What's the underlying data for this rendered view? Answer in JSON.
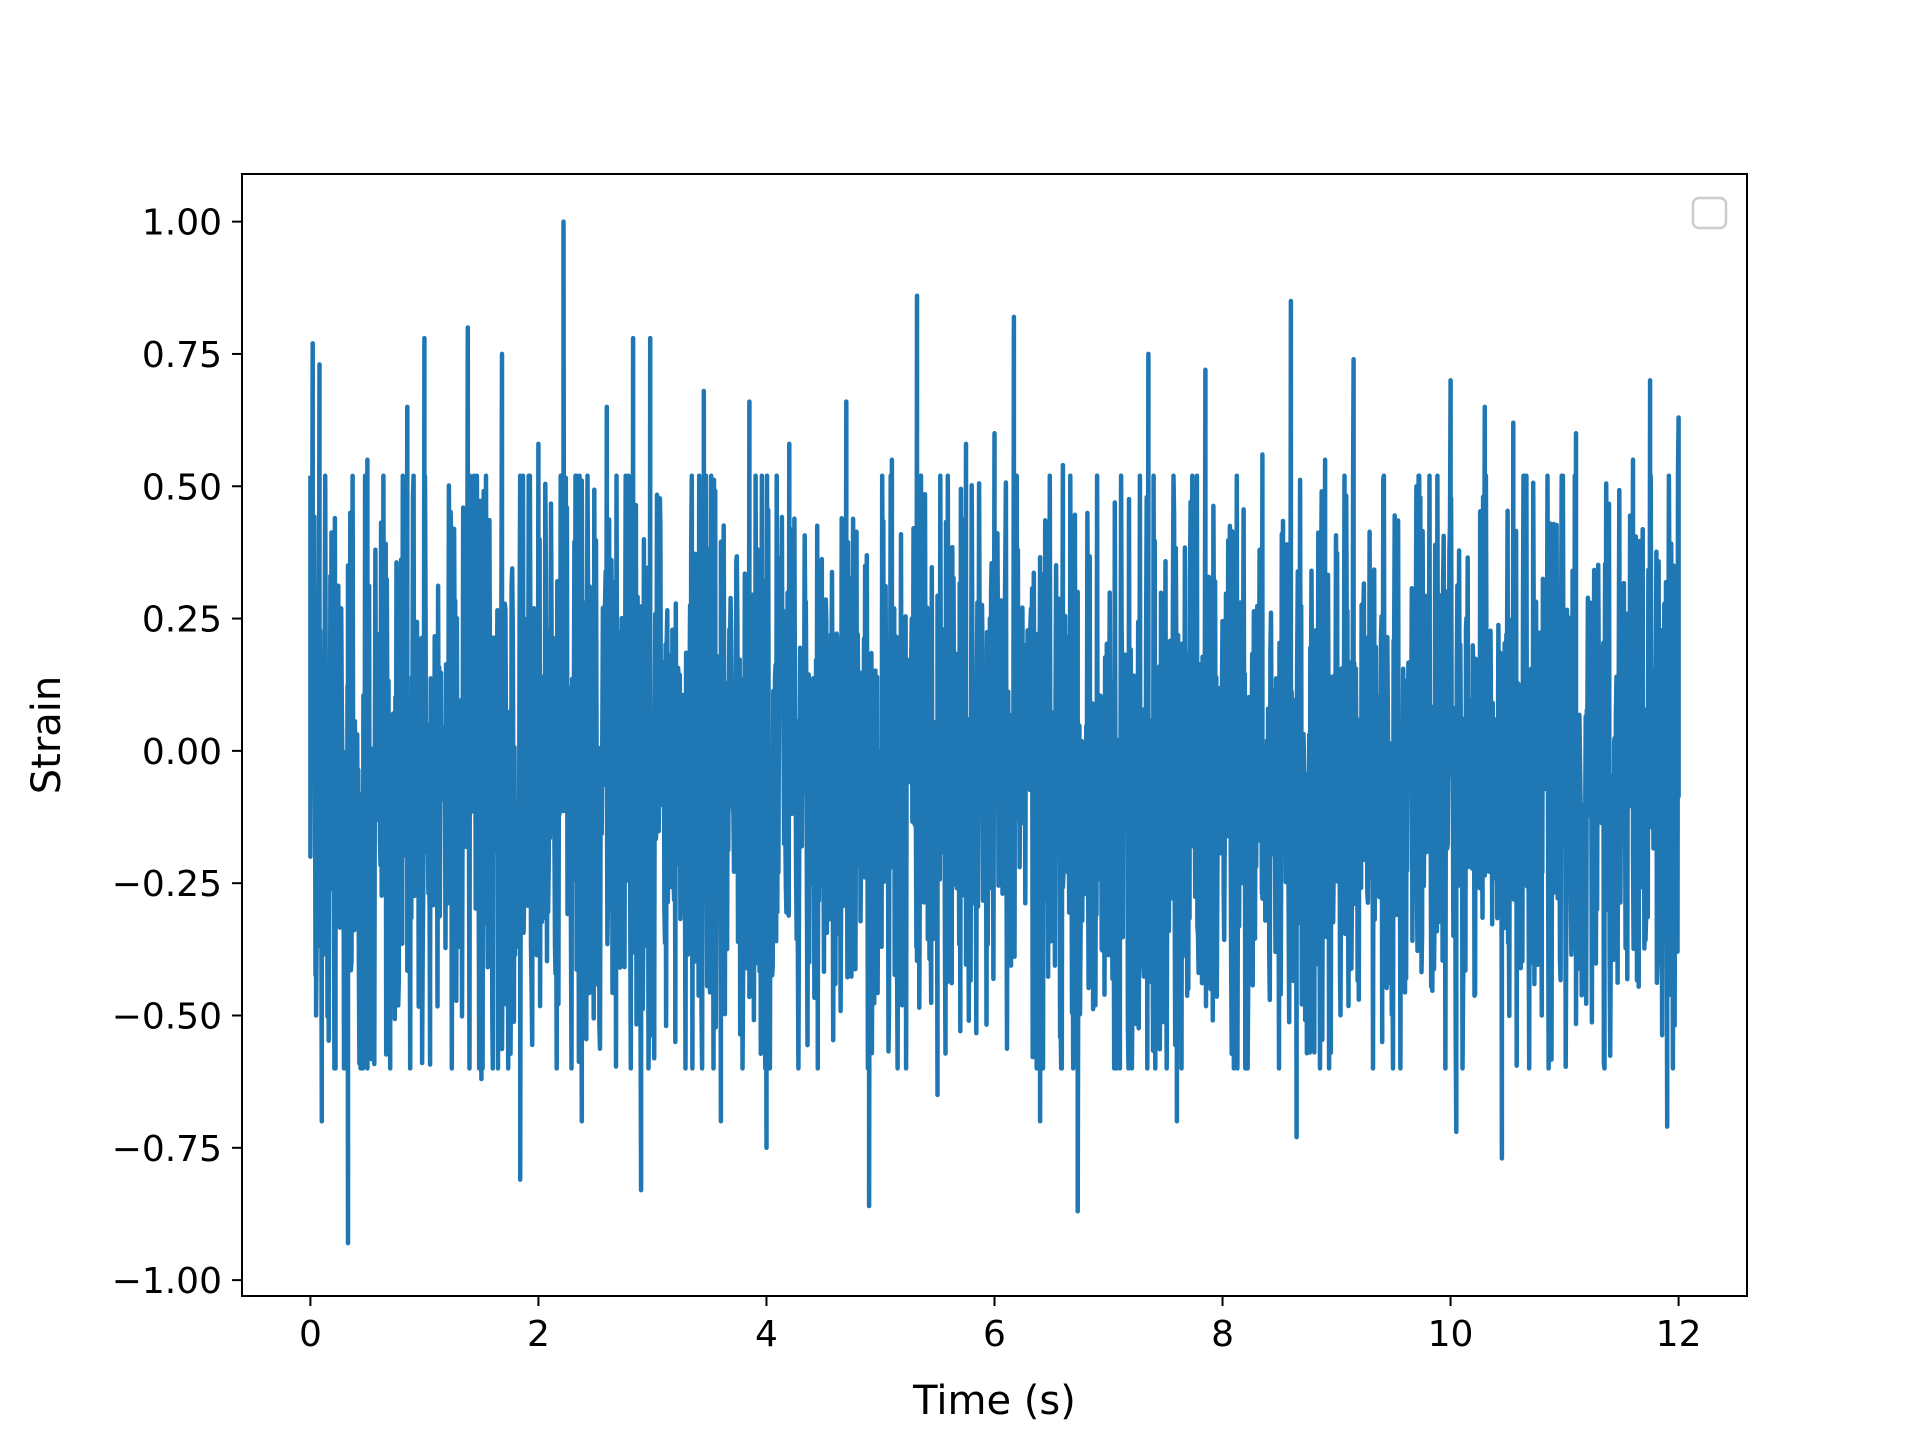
{
  "chart_data": {
    "type": "line",
    "title": "",
    "xlabel": "Time (s)",
    "ylabel": "Strain",
    "xlim": [
      -0.6,
      12.6
    ],
    "ylim": [
      -1.03,
      1.09
    ],
    "x_ticks": [
      0,
      2,
      4,
      6,
      8,
      10,
      12
    ],
    "x_tick_labels": [
      "0",
      "2",
      "4",
      "6",
      "8",
      "10",
      "12"
    ],
    "y_ticks": [
      1.0,
      0.75,
      0.5,
      0.25,
      0.0,
      -0.25,
      -0.5,
      -0.75,
      -1.0
    ],
    "y_tick_labels": [
      "1.00",
      "0.75",
      "0.50",
      "0.25",
      "0.00",
      "−0.25",
      "−0.50",
      "−0.75",
      "−1.00"
    ],
    "grid": false,
    "legend": {
      "placement": "top-right",
      "entries": []
    },
    "colors": {
      "series": "#1f77b4",
      "axes": "#000000",
      "legend_border": "#cccccc"
    },
    "series": [
      {
        "color": "#1f77b4",
        "x": [
          0.0,
          0.02,
          0.05,
          0.08,
          0.1,
          0.13,
          0.22,
          0.33,
          0.5,
          0.7,
          0.85,
          1.0,
          1.05,
          1.38,
          1.5,
          1.68,
          1.84,
          2.0,
          2.22,
          2.38,
          2.6,
          2.83,
          2.9,
          2.98,
          3.2,
          3.45,
          3.6,
          3.85,
          4.0,
          4.2,
          4.45,
          4.7,
          4.9,
          5.1,
          5.32,
          5.5,
          5.75,
          6.0,
          6.17,
          6.4,
          6.6,
          6.73,
          6.9,
          7.1,
          7.35,
          7.6,
          7.85,
          8.1,
          8.35,
          8.6,
          8.65,
          8.9,
          9.15,
          9.4,
          9.7,
          10.0,
          10.05,
          10.3,
          10.45,
          10.55,
          10.8,
          11.1,
          11.35,
          11.6,
          11.75,
          11.9,
          12.0
        ],
        "y": [
          -0.2,
          0.77,
          -0.5,
          0.73,
          -0.7,
          0.5,
          -0.6,
          -0.93,
          0.55,
          -0.6,
          0.65,
          0.78,
          -0.4,
          0.8,
          -0.62,
          0.75,
          -0.81,
          0.58,
          1.0,
          -0.7,
          0.65,
          0.78,
          -0.83,
          0.78,
          -0.55,
          0.68,
          -0.7,
          0.66,
          -0.75,
          0.58,
          -0.6,
          0.66,
          -0.86,
          0.55,
          0.86,
          -0.65,
          0.58,
          0.6,
          0.82,
          -0.7,
          0.54,
          -0.87,
          0.52,
          -0.6,
          0.75,
          -0.7,
          0.72,
          -0.6,
          0.56,
          0.85,
          -0.73,
          0.55,
          0.74,
          -0.55,
          0.5,
          0.7,
          -0.72,
          0.65,
          -0.77,
          0.62,
          -0.5,
          0.6,
          -0.6,
          0.55,
          0.7,
          -0.71,
          0.63
        ]
      }
    ]
  }
}
